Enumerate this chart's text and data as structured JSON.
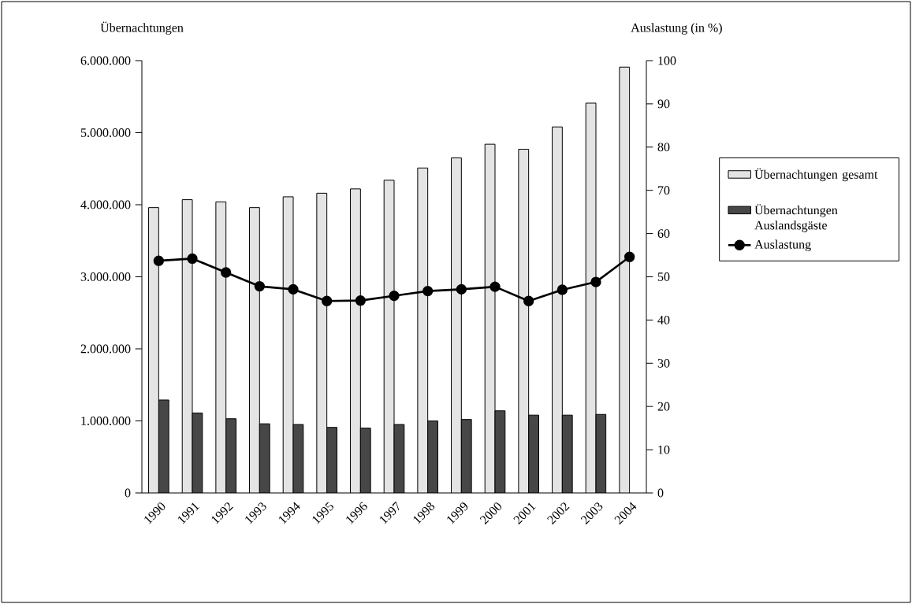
{
  "chart_data": {
    "type": "bar",
    "xlabel": null,
    "ylabel": "Übernachtungen",
    "y2label": "Auslastung (in %)",
    "categories": [
      "1990",
      "1991",
      "1992",
      "1993",
      "1994",
      "1995",
      "1996",
      "1997",
      "1998",
      "1999",
      "2000",
      "2001",
      "2002",
      "2003",
      "2004"
    ],
    "series": [
      {
        "name": "Übernachtungen gesamt",
        "color": "#e4e4e4",
        "values": [
          3960000,
          4070000,
          4040000,
          3960000,
          4110000,
          4160000,
          4220000,
          4340000,
          4510000,
          4650000,
          4840000,
          4770000,
          5080000,
          5410000,
          5910000
        ]
      },
      {
        "name": "Übernachtungen Auslandsgäste",
        "color": "#474747",
        "values": [
          1290000,
          1110000,
          1030000,
          960000,
          950000,
          910000,
          900000,
          950000,
          1000000,
          1020000,
          1140000,
          1080000,
          1080000,
          1090000,
          null
        ]
      },
      {
        "name": "Auslastung",
        "type": "line",
        "axis": "y2",
        "color": "#000000",
        "values": [
          53.7,
          54.2,
          51.0,
          47.8,
          47.1,
          44.4,
          44.5,
          45.6,
          46.7,
          47.1,
          47.7,
          44.4,
          47.0,
          48.8,
          54.6
        ]
      }
    ],
    "ylim": [
      0,
      6000000
    ],
    "yticks": [
      0,
      {
        "value": 1000000,
        "label": "1.000.000"
      },
      {
        "value": 2000000,
        "label": "2.000.000"
      },
      {
        "value": 3000000,
        "label": "3.000.000"
      },
      {
        "value": 4000000,
        "label": "4.000.000"
      },
      {
        "value": 5000000,
        "label": "5.000.000"
      },
      {
        "value": 6000000,
        "label": "6.000.000"
      }
    ],
    "y2lim": [
      0,
      100
    ],
    "y2ticks": [
      0,
      10,
      20,
      30,
      40,
      50,
      60,
      70,
      80,
      90,
      100
    ],
    "legend": "right",
    "marker": "circle",
    "line_style": "solid"
  }
}
